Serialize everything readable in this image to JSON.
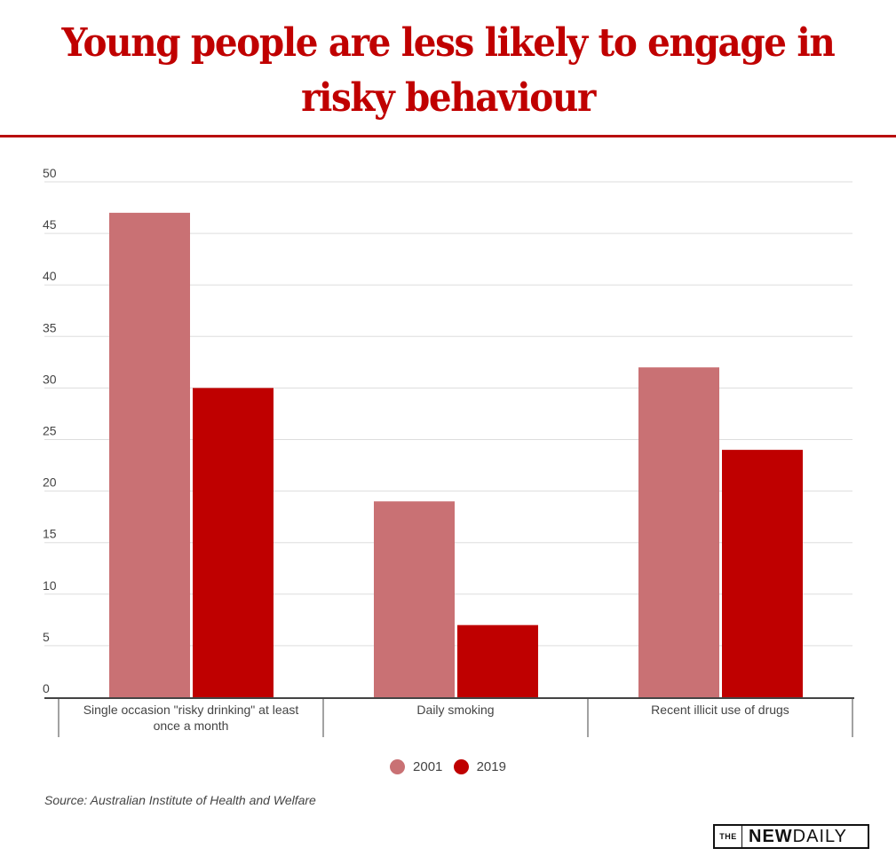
{
  "title": "Young people are less likely to engage in risky behaviour",
  "title_lines": [
    "Young people are less likely to engage in",
    "risky behaviour"
  ],
  "colors": {
    "title": "#c00000",
    "series_2001": "#c97174",
    "series_2019": "#bf0000",
    "gridline": "#dddddd",
    "axis": "#444444"
  },
  "chart_data": {
    "type": "bar",
    "title": "Young people are less likely to engage in risky behaviour",
    "xlabel": "",
    "ylabel": "",
    "categories": [
      "Single occasion \"risky drinking\" at least once a month",
      "Daily smoking",
      "Recent illicit use of drugs"
    ],
    "category_label_lines": [
      [
        "Single occasion \"risky drinking\" at least",
        "once a month"
      ],
      [
        "Daily smoking"
      ],
      [
        "Recent illicit use of drugs"
      ]
    ],
    "series": [
      {
        "name": "2001",
        "color": "#c97174",
        "values": [
          47,
          19,
          32
        ]
      },
      {
        "name": "2019",
        "color": "#bf0000",
        "values": [
          30,
          7,
          24
        ]
      }
    ],
    "ylim": [
      0,
      50
    ],
    "yticks": [
      0,
      5,
      10,
      15,
      20,
      25,
      30,
      35,
      40,
      45,
      50
    ],
    "grid": true,
    "legend_position": "bottom-center"
  },
  "legend": [
    {
      "label": "2001",
      "color": "#c97174"
    },
    {
      "label": "2019",
      "color": "#bf0000"
    }
  ],
  "source": "Source: Australian Institute of Health and Welfare",
  "logo": {
    "prefix": "THE",
    "bold": "NEW",
    "rest": "DAILY"
  }
}
